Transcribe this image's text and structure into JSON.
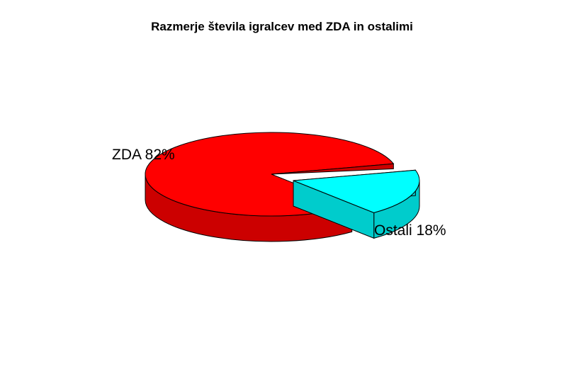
{
  "chart_data": {
    "type": "pie",
    "title": "Razmerje števila igralcev med ZDA in ostalimi",
    "slices": [
      {
        "label": "ZDA 82%",
        "category": "ZDA",
        "value": 82,
        "color": "#ff0000",
        "side_color": "#cc0000",
        "exploded": false
      },
      {
        "label": "Ostali 18%",
        "category": "Ostali",
        "value": 18,
        "color": "#00ffff",
        "side_color": "#00cccc",
        "exploded": true
      }
    ],
    "style": "3d"
  }
}
